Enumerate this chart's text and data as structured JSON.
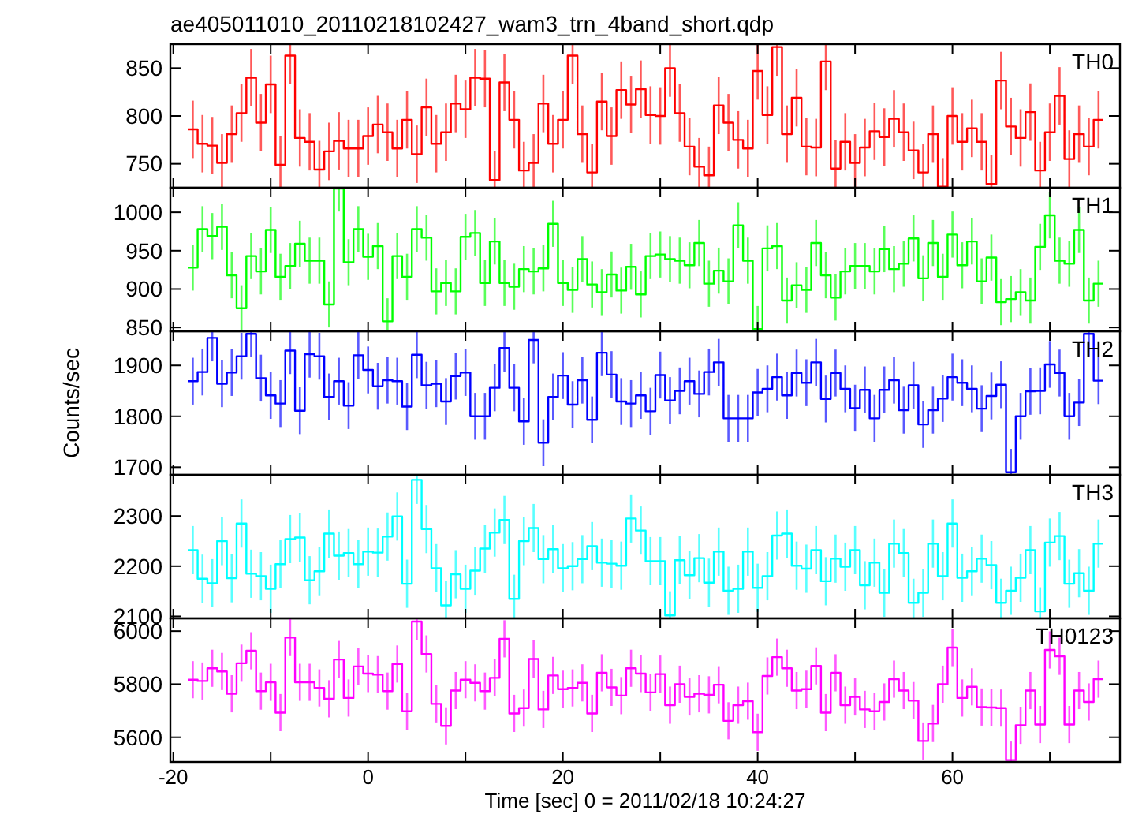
{
  "chart_data": [
    {
      "type": "step",
      "title": "ae405011010_20110218102427_wam3_trn_4band_short.qdp",
      "x": [
        -18,
        -17,
        -16,
        -15,
        -14,
        -13,
        -12,
        -11,
        -10,
        -9,
        -8,
        -7,
        -6,
        -5,
        -4,
        -3,
        -2,
        -1,
        0,
        1,
        2,
        3,
        4,
        5,
        6,
        7,
        8,
        9,
        10,
        11,
        12,
        13,
        14,
        15,
        16,
        17,
        18,
        19,
        20,
        21,
        22,
        23,
        24,
        25,
        26,
        27,
        28,
        29,
        30,
        31,
        32,
        33,
        34,
        35,
        36,
        37,
        38,
        39,
        40,
        41,
        42,
        43,
        44,
        45,
        46,
        47,
        48,
        49,
        50,
        51,
        52,
        53,
        54,
        55,
        56,
        57,
        58,
        59,
        60,
        61,
        62,
        63,
        64,
        65,
        66,
        67,
        68,
        69,
        70,
        71,
        72,
        73,
        74,
        75
      ],
      "xlim": [
        -20.3,
        77.2
      ],
      "xticks": [
        -20,
        {
          "value": -10,
          "label": null
        },
        0,
        {
          "value": 10,
          "label": null
        },
        20,
        {
          "value": 30,
          "label": null
        },
        40,
        {
          "value": 50,
          "label": null
        },
        60,
        {
          "value": 70,
          "label": null
        }
      ],
      "ylim": [
        725,
        875
      ],
      "yticks": [
        750,
        800,
        850
      ],
      "tick_labels": "y",
      "series": [
        {
          "name": "TH0",
          "color": "#ff0000",
          "values": [
            786,
            771,
            769,
            751,
            781,
            803,
            840,
            793,
            833,
            749,
            863,
            777,
            773,
            744,
            763,
            774,
            766,
            766,
            779,
            791,
            783,
            766,
            796,
            760,
            809,
            771,
            783,
            813,
            807,
            840,
            839,
            733,
            835,
            796,
            743,
            751,
            813,
            771,
            796,
            863,
            781,
            741,
            815,
            779,
            827,
            812,
            828,
            801,
            800,
            850,
            803,
            768,
            747,
            738,
            811,
            793,
            775,
            766,
            847,
            801,
            872,
            781,
            819,
            768,
            767,
            857,
            745,
            773,
            751,
            767,
            784,
            778,
            797,
            783,
            764,
            741,
            781,
            726,
            800,
            773,
            787,
            773,
            729,
            837,
            789,
            777,
            804,
            743,
            783,
            821,
            755,
            781,
            768,
            796
          ],
          "errors": [
            30,
            30,
            30,
            30,
            30,
            30,
            30,
            30,
            30,
            30,
            30,
            30,
            30,
            30,
            30,
            30,
            30,
            30,
            30,
            30,
            30,
            30,
            30,
            30,
            30,
            30,
            30,
            30,
            30,
            30,
            30,
            30,
            30,
            30,
            30,
            30,
            30,
            30,
            30,
            30,
            30,
            30,
            30,
            30,
            30,
            30,
            30,
            30,
            30,
            30,
            30,
            30,
            30,
            30,
            30,
            30,
            30,
            30,
            30,
            30,
            30,
            30,
            30,
            30,
            30,
            30,
            30,
            30,
            30,
            30,
            30,
            30,
            30,
            30,
            30,
            30,
            30,
            30,
            30,
            30,
            30,
            30,
            30,
            30,
            30,
            30,
            30,
            30,
            30,
            30,
            30,
            30,
            30,
            30
          ]
        }
      ]
    },
    {
      "type": "step",
      "x": [
        -18,
        -17,
        -16,
        -15,
        -14,
        -13,
        -12,
        -11,
        -10,
        -9,
        -8,
        -7,
        -6,
        -5,
        -4,
        -3,
        -2,
        -1,
        0,
        1,
        2,
        3,
        4,
        5,
        6,
        7,
        8,
        9,
        10,
        11,
        12,
        13,
        14,
        15,
        16,
        17,
        18,
        19,
        20,
        21,
        22,
        23,
        24,
        25,
        26,
        27,
        28,
        29,
        30,
        31,
        32,
        33,
        34,
        35,
        36,
        37,
        38,
        39,
        40,
        41,
        42,
        43,
        44,
        45,
        46,
        47,
        48,
        49,
        50,
        51,
        52,
        53,
        54,
        55,
        56,
        57,
        58,
        59,
        60,
        61,
        62,
        63,
        64,
        65,
        66,
        67,
        68,
        69,
        70,
        71,
        72,
        73,
        74,
        75
      ],
      "xlim": [
        -20.3,
        77.2
      ],
      "xticks": [
        -20,
        {
          "value": -10,
          "label": null
        },
        0,
        {
          "value": 10,
          "label": null
        },
        20,
        {
          "value": 30,
          "label": null
        },
        40,
        {
          "value": 50,
          "label": null
        },
        60,
        {
          "value": 70,
          "label": null
        }
      ],
      "ylim": [
        845,
        1032
      ],
      "yticks": [
        850,
        900,
        950,
        1000
      ],
      "tick_labels": "y",
      "series": [
        {
          "name": "TH1",
          "color": "#00ff00",
          "values": [
            928,
            978,
            969,
            981,
            918,
            875,
            943,
            923,
            977,
            916,
            930,
            959,
            937,
            937,
            880,
            1031,
            935,
            978,
            942,
            956,
            858,
            943,
            916,
            978,
            967,
            897,
            908,
            897,
            968,
            973,
            908,
            962,
            908,
            903,
            926,
            923,
            927,
            985,
            908,
            899,
            939,
            906,
            896,
            919,
            898,
            929,
            893,
            943,
            945,
            939,
            937,
            931,
            960,
            907,
            924,
            910,
            983,
            937,
            848,
            953,
            956,
            885,
            905,
            899,
            960,
            918,
            889,
            923,
            930,
            930,
            923,
            952,
            926,
            933,
            966,
            914,
            960,
            916,
            971,
            931,
            962,
            910,
            941,
            883,
            887,
            896,
            885,
            955,
            996,
            937,
            933,
            977,
            885,
            907
          ],
          "errors": [
            30,
            30,
            30,
            30,
            30,
            30,
            30,
            30,
            30,
            30,
            30,
            30,
            30,
            30,
            30,
            30,
            30,
            30,
            30,
            30,
            30,
            30,
            30,
            30,
            30,
            30,
            30,
            30,
            30,
            30,
            30,
            30,
            30,
            30,
            30,
            30,
            30,
            30,
            30,
            30,
            30,
            30,
            30,
            30,
            30,
            30,
            30,
            30,
            30,
            30,
            30,
            30,
            30,
            30,
            30,
            30,
            30,
            30,
            30,
            30,
            30,
            30,
            30,
            30,
            30,
            30,
            30,
            30,
            30,
            30,
            30,
            30,
            30,
            30,
            30,
            30,
            30,
            30,
            30,
            30,
            30,
            30,
            30,
            30,
            30,
            30,
            30,
            30,
            30,
            30,
            30,
            30,
            30,
            30
          ]
        }
      ]
    },
    {
      "type": "step",
      "ylabel": "Counts/sec",
      "x": [
        -18,
        -17,
        -16,
        -15,
        -14,
        -13,
        -12,
        -11,
        -10,
        -9,
        -8,
        -7,
        -6,
        -5,
        -4,
        -3,
        -2,
        -1,
        0,
        1,
        2,
        3,
        4,
        5,
        6,
        7,
        8,
        9,
        10,
        11,
        12,
        13,
        14,
        15,
        16,
        17,
        18,
        19,
        20,
        21,
        22,
        23,
        24,
        25,
        26,
        27,
        28,
        29,
        30,
        31,
        32,
        33,
        34,
        35,
        36,
        37,
        38,
        39,
        40,
        41,
        42,
        43,
        44,
        45,
        46,
        47,
        48,
        49,
        50,
        51,
        52,
        53,
        54,
        55,
        56,
        57,
        58,
        59,
        60,
        61,
        62,
        63,
        64,
        65,
        66,
        67,
        68,
        69,
        70,
        71,
        72,
        73,
        74,
        75
      ],
      "xlim": [
        -20.3,
        77.2
      ],
      "xticks": [
        -20,
        {
          "value": -10,
          "label": null
        },
        0,
        {
          "value": 10,
          "label": null
        },
        20,
        {
          "value": 30,
          "label": null
        },
        40,
        {
          "value": 50,
          "label": null
        },
        60,
        {
          "value": 70,
          "label": null
        }
      ],
      "ylim": [
        1685,
        1967
      ],
      "yticks": [
        1700,
        1800,
        1900
      ],
      "tick_labels": "y",
      "series": [
        {
          "name": "TH2",
          "color": "#0000ff",
          "values": [
            1869,
            1887,
            1954,
            1864,
            1886,
            1918,
            1962,
            1875,
            1841,
            1825,
            1929,
            1811,
            1922,
            1918,
            1838,
            1869,
            1821,
            1920,
            1891,
            1859,
            1871,
            1869,
            1819,
            1921,
            1861,
            1864,
            1829,
            1879,
            1886,
            1800,
            1800,
            1856,
            1934,
            1856,
            1790,
            1950,
            1748,
            1838,
            1880,
            1823,
            1871,
            1793,
            1925,
            1882,
            1829,
            1825,
            1841,
            1810,
            1881,
            1831,
            1850,
            1869,
            1844,
            1887,
            1906,
            1796,
            1796,
            1796,
            1847,
            1854,
            1877,
            1841,
            1885,
            1866,
            1906,
            1834,
            1885,
            1854,
            1816,
            1852,
            1796,
            1852,
            1871,
            1812,
            1861,
            1784,
            1812,
            1835,
            1877,
            1866,
            1854,
            1815,
            1840,
            1862,
            1690,
            1800,
            1849,
            1850,
            1902,
            1885,
            1800,
            1827,
            1962,
            1870
          ],
          "errors": [
            46,
            46,
            46,
            46,
            46,
            46,
            46,
            46,
            46,
            46,
            46,
            46,
            46,
            46,
            46,
            46,
            46,
            46,
            46,
            46,
            46,
            46,
            46,
            46,
            46,
            46,
            46,
            46,
            46,
            46,
            46,
            46,
            46,
            46,
            46,
            46,
            46,
            46,
            46,
            46,
            46,
            46,
            46,
            46,
            46,
            46,
            46,
            46,
            46,
            46,
            46,
            46,
            46,
            46,
            46,
            46,
            46,
            46,
            46,
            46,
            46,
            46,
            46,
            46,
            46,
            46,
            46,
            46,
            46,
            46,
            46,
            46,
            46,
            46,
            46,
            46,
            46,
            46,
            46,
            46,
            46,
            46,
            46,
            46,
            46,
            46,
            46,
            46,
            46,
            46,
            46,
            46,
            46,
            46
          ]
        }
      ]
    },
    {
      "type": "step",
      "x": [
        -18,
        -17,
        -16,
        -15,
        -14,
        -13,
        -12,
        -11,
        -10,
        -9,
        -8,
        -7,
        -6,
        -5,
        -4,
        -3,
        -2,
        -1,
        0,
        1,
        2,
        3,
        4,
        5,
        6,
        7,
        8,
        9,
        10,
        11,
        12,
        13,
        14,
        15,
        16,
        17,
        18,
        19,
        20,
        21,
        22,
        23,
        24,
        25,
        26,
        27,
        28,
        29,
        30,
        31,
        32,
        33,
        34,
        35,
        36,
        37,
        38,
        39,
        40,
        41,
        42,
        43,
        44,
        45,
        46,
        47,
        48,
        49,
        50,
        51,
        52,
        53,
        54,
        55,
        56,
        57,
        58,
        59,
        60,
        61,
        62,
        63,
        64,
        65,
        66,
        67,
        68,
        69,
        70,
        71,
        72,
        73,
        74,
        75
      ],
      "xlim": [
        -20.3,
        77.2
      ],
      "xticks": [
        -20,
        {
          "value": -10,
          "label": null
        },
        0,
        {
          "value": 10,
          "label": null
        },
        20,
        {
          "value": 30,
          "label": null
        },
        40,
        {
          "value": 50,
          "label": null
        },
        60,
        {
          "value": 70,
          "label": null
        }
      ],
      "ylim": [
        2096,
        2382
      ],
      "yticks": [
        2100,
        2200,
        2300
      ],
      "tick_labels": "y",
      "series": [
        {
          "name": "TH3",
          "color": "#00ffff",
          "values": [
            2232,
            2175,
            2166,
            2250,
            2176,
            2285,
            2185,
            2180,
            2155,
            2204,
            2254,
            2257,
            2172,
            2190,
            2265,
            2221,
            2226,
            2204,
            2229,
            2227,
            2259,
            2299,
            2165,
            2372,
            2274,
            2196,
            2122,
            2184,
            2155,
            2191,
            2235,
            2267,
            2292,
            2135,
            2250,
            2276,
            2214,
            2234,
            2196,
            2200,
            2214,
            2240,
            2207,
            2205,
            2201,
            2295,
            2271,
            2210,
            2210,
            2102,
            2212,
            2182,
            2216,
            2167,
            2229,
            2151,
            2155,
            2229,
            2157,
            2180,
            2261,
            2265,
            2201,
            2195,
            2232,
            2170,
            2215,
            2199,
            2232,
            2162,
            2207,
            2147,
            2245,
            2226,
            2127,
            2147,
            2245,
            2180,
            2285,
            2177,
            2190,
            2215,
            2202,
            2127,
            2151,
            2177,
            2232,
            2110,
            2247,
            2260,
            2165,
            2186,
            2151,
            2245
          ],
          "errors": [
            48,
            48,
            48,
            48,
            48,
            48,
            48,
            48,
            48,
            48,
            48,
            48,
            48,
            48,
            48,
            48,
            48,
            48,
            48,
            48,
            48,
            48,
            48,
            48,
            48,
            48,
            48,
            48,
            48,
            48,
            48,
            48,
            48,
            48,
            48,
            48,
            48,
            48,
            48,
            48,
            48,
            48,
            48,
            48,
            48,
            48,
            48,
            48,
            48,
            48,
            48,
            48,
            48,
            48,
            48,
            48,
            48,
            48,
            48,
            48,
            48,
            48,
            48,
            48,
            48,
            48,
            48,
            48,
            48,
            48,
            48,
            48,
            48,
            48,
            48,
            48,
            48,
            48,
            48,
            48,
            48,
            48,
            48,
            48,
            48,
            48,
            48,
            48,
            48,
            48,
            48,
            48,
            48,
            48
          ]
        }
      ]
    },
    {
      "type": "step",
      "xlabel": "Time [sec] 0 = 2011/02/18 10:24:27",
      "x": [
        -18,
        -17,
        -16,
        -15,
        -14,
        -13,
        -12,
        -11,
        -10,
        -9,
        -8,
        -7,
        -6,
        -5,
        -4,
        -3,
        -2,
        -1,
        0,
        1,
        2,
        3,
        4,
        5,
        6,
        7,
        8,
        9,
        10,
        11,
        12,
        13,
        14,
        15,
        16,
        17,
        18,
        19,
        20,
        21,
        22,
        23,
        24,
        25,
        26,
        27,
        28,
        29,
        30,
        31,
        32,
        33,
        34,
        35,
        36,
        37,
        38,
        39,
        40,
        41,
        42,
        43,
        44,
        45,
        46,
        47,
        48,
        49,
        50,
        51,
        52,
        53,
        54,
        55,
        56,
        57,
        58,
        59,
        60,
        61,
        62,
        63,
        64,
        65,
        66,
        67,
        68,
        69,
        70,
        71,
        72,
        73,
        74,
        75
      ],
      "xlim": [
        -20.3,
        77.2
      ],
      "xticks": [
        -20,
        {
          "value": -10,
          "label": null
        },
        0,
        {
          "value": 10,
          "label": null
        },
        20,
        {
          "value": 30,
          "label": null
        },
        40,
        {
          "value": 50,
          "label": null
        },
        60,
        {
          "value": 70,
          "label": null
        }
      ],
      "ylim": [
        5507,
        6048
      ],
      "yticks": [
        5600,
        5800,
        6000
      ],
      "series": [
        {
          "name": "TH0123",
          "color": "#ff00ff",
          "values": [
            5817,
            5812,
            5860,
            5848,
            5764,
            5879,
            5926,
            5774,
            5807,
            5693,
            5976,
            5807,
            5807,
            5786,
            5745,
            5893,
            5748,
            5867,
            5840,
            5836,
            5774,
            5876,
            5698,
            6036,
            5914,
            5726,
            5643,
            5776,
            5817,
            5805,
            5774,
            5824,
            5971,
            5690,
            5710,
            5895,
            5705,
            5833,
            5781,
            5786,
            5805,
            5690,
            5843,
            5788,
            5757,
            5860,
            5840,
            5769,
            5838,
            5721,
            5800,
            5752,
            5764,
            5760,
            5798,
            5662,
            5721,
            5736,
            5619,
            5831,
            5902,
            5860,
            5776,
            5781,
            5869,
            5693,
            5843,
            5721,
            5752,
            5705,
            5698,
            5733,
            5819,
            5776,
            5738,
            5586,
            5652,
            5800,
            5938,
            5748,
            5790,
            5714,
            5712,
            5710,
            5514,
            5645,
            5776,
            5648,
            5929,
            5905,
            5648,
            5776,
            5733,
            5819
          ],
          "errors": [
            70,
            70,
            70,
            70,
            70,
            70,
            70,
            70,
            70,
            70,
            70,
            70,
            70,
            70,
            70,
            70,
            70,
            70,
            70,
            70,
            70,
            70,
            70,
            70,
            70,
            70,
            70,
            70,
            70,
            70,
            70,
            70,
            70,
            70,
            70,
            70,
            70,
            70,
            70,
            70,
            70,
            70,
            70,
            70,
            70,
            70,
            70,
            70,
            70,
            70,
            70,
            70,
            70,
            70,
            70,
            70,
            70,
            70,
            70,
            70,
            70,
            70,
            70,
            70,
            70,
            70,
            70,
            70,
            70,
            70,
            70,
            70,
            70,
            70,
            70,
            70,
            70,
            70,
            70,
            70,
            70,
            70,
            70,
            70,
            70,
            70,
            70,
            70,
            70,
            70,
            70,
            70,
            70,
            70
          ]
        }
      ]
    }
  ]
}
